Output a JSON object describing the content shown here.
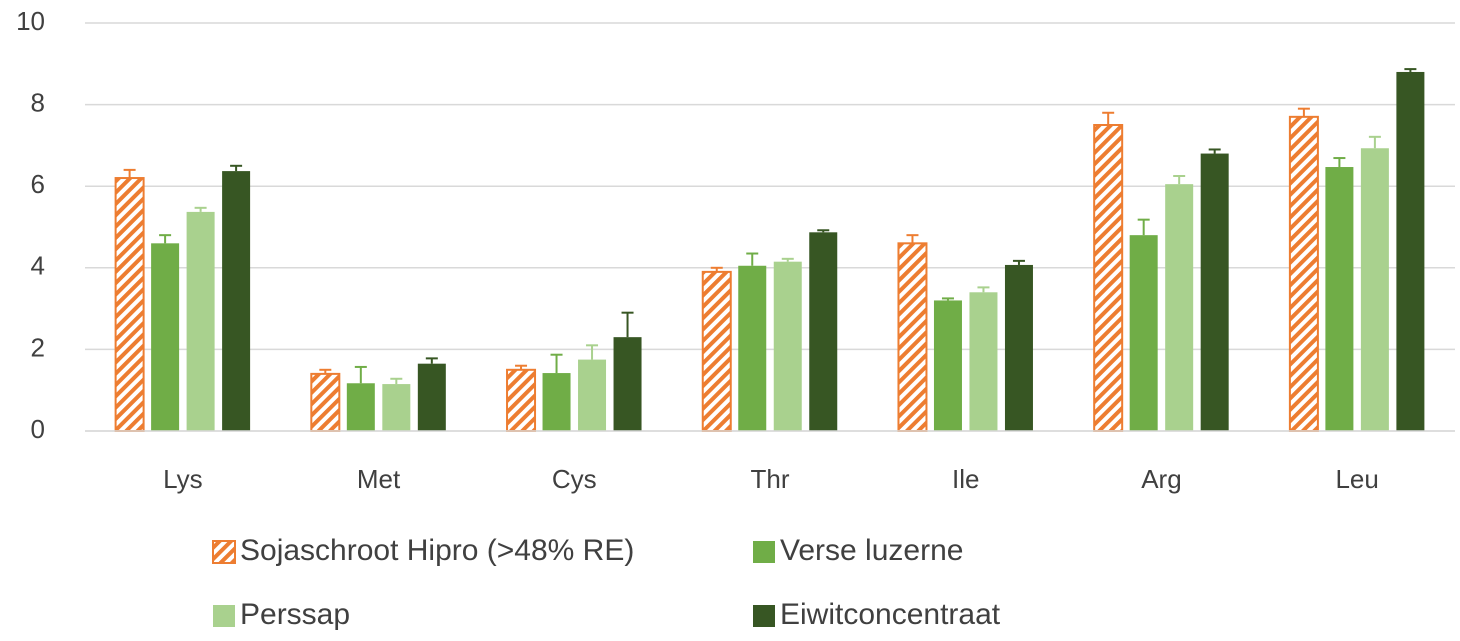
{
  "chart_data": {
    "type": "bar",
    "categories": [
      "Lys",
      "Met",
      "Cys",
      "Thr",
      "Ile",
      "Arg",
      "Leu"
    ],
    "series": [
      {
        "name": "Sojaschroot Hipro (>48% RE)",
        "color": "#ed7d31",
        "hatch": true,
        "values": [
          6.2,
          1.4,
          1.5,
          3.9,
          4.6,
          7.5,
          7.7
        ],
        "errors": [
          0.2,
          0.1,
          0.1,
          0.1,
          0.2,
          0.3,
          0.2
        ]
      },
      {
        "name": "Verse luzerne",
        "color": "#70ad47",
        "values": [
          4.6,
          1.17,
          1.42,
          4.05,
          3.2,
          4.8,
          6.47
        ],
        "errors": [
          0.2,
          0.4,
          0.45,
          0.3,
          0.05,
          0.38,
          0.22
        ]
      },
      {
        "name": "Perssap",
        "color": "#a9d18e",
        "values": [
          5.37,
          1.15,
          1.75,
          4.15,
          3.4,
          6.05,
          6.93
        ],
        "errors": [
          0.1,
          0.13,
          0.35,
          0.07,
          0.12,
          0.2,
          0.28
        ]
      },
      {
        "name": "Eiwitconcentraat",
        "color": "#375623",
        "values": [
          6.37,
          1.65,
          2.3,
          4.87,
          4.07,
          6.8,
          8.8
        ],
        "errors": [
          0.13,
          0.13,
          0.6,
          0.05,
          0.1,
          0.1,
          0.07
        ]
      }
    ],
    "ylim": [
      0,
      10
    ],
    "yticks": [
      0,
      2,
      4,
      6,
      8,
      10
    ],
    "grid": true
  }
}
